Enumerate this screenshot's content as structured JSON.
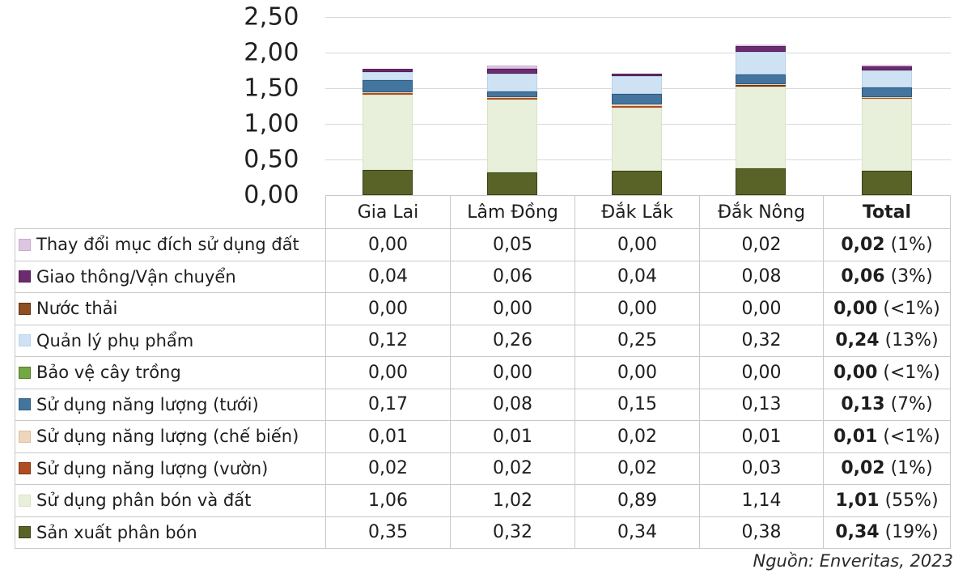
{
  "chart_data": {
    "type": "bar",
    "stacked": true,
    "categories": [
      "Gia Lai",
      "Lâm Đồng",
      "Đắk Lắk",
      "Đắk Nông",
      "Total"
    ],
    "yticks": [
      "2,50",
      "2,00",
      "1,50",
      "1,00",
      "0,50",
      "0,00"
    ],
    "ylim": [
      0,
      2.5
    ],
    "grid": true,
    "legend_position": "table-left-column",
    "note": "values use comma decimal separator; last value of each series is the Total column; stack order bottom-to-top is reverse of series list",
    "series": [
      {
        "name": "Thay đổi mục đích sử dụng đất",
        "color": "#ddc6e1",
        "edge": "#c9a9ce",
        "values": [
          "0,00",
          "0,05",
          "0,00",
          "0,02",
          "0,02"
        ],
        "total_pct": "(1%)"
      },
      {
        "name": "Giao thông/Vận chuyển",
        "color": "#6e2a71",
        "edge": "#521f55",
        "values": [
          "0,04",
          "0,06",
          "0,04",
          "0,08",
          "0,06"
        ],
        "total_pct": "(3%)"
      },
      {
        "name": "Nước thải",
        "color": "#8f4e21",
        "edge": "#5f340e",
        "values": [
          "0,00",
          "0,00",
          "0,00",
          "0,00",
          "0,00"
        ],
        "total_pct": "(<1%)"
      },
      {
        "name": "Quản lý phụ phẩm",
        "color": "#cfe2f3",
        "edge": "#b7d3ea",
        "values": [
          "0,12",
          "0,26",
          "0,25",
          "0,32",
          "0,24"
        ],
        "total_pct": "(13%)"
      },
      {
        "name": "Bảo vệ cây trồng",
        "color": "#73a742",
        "edge": "#527c27",
        "values": [
          "0,00",
          "0,00",
          "0,00",
          "0,00",
          "0,00"
        ],
        "total_pct": "(<1%)"
      },
      {
        "name": "Sử dụng năng lượng (tưới)",
        "color": "#44759e",
        "edge": "#2d5a80",
        "values": [
          "0,17",
          "0,08",
          "0,15",
          "0,13",
          "0,13"
        ],
        "total_pct": "(7%)"
      },
      {
        "name": "Sử dụng năng lượng (chế biến)",
        "color": "#efd5bb",
        "edge": "#dfbf9e",
        "values": [
          "0,01",
          "0,01",
          "0,02",
          "0,01",
          "0,01"
        ],
        "total_pct": "(<1%)"
      },
      {
        "name": "Sử dụng năng lượng (vườn)",
        "color": "#ae4e22",
        "edge": "#7e350f",
        "values": [
          "0,02",
          "0,02",
          "0,02",
          "0,03",
          "0,02"
        ],
        "total_pct": "(1%)"
      },
      {
        "name": "Sử dụng phân bón và đất",
        "color": "#e8f0dc",
        "edge": "#d6e4c3",
        "values": [
          "1,06",
          "1,02",
          "0,89",
          "1,14",
          "1,01"
        ],
        "total_pct": "(55%)"
      },
      {
        "name": "Sản xuất phân bón",
        "color": "#5a6327",
        "edge": "#3a4214",
        "values": [
          "0,35",
          "0,32",
          "0,34",
          "0,38",
          "0,34"
        ],
        "total_pct": "(19%)"
      }
    ]
  },
  "source": "Nguồn: Enveritas, 2023"
}
